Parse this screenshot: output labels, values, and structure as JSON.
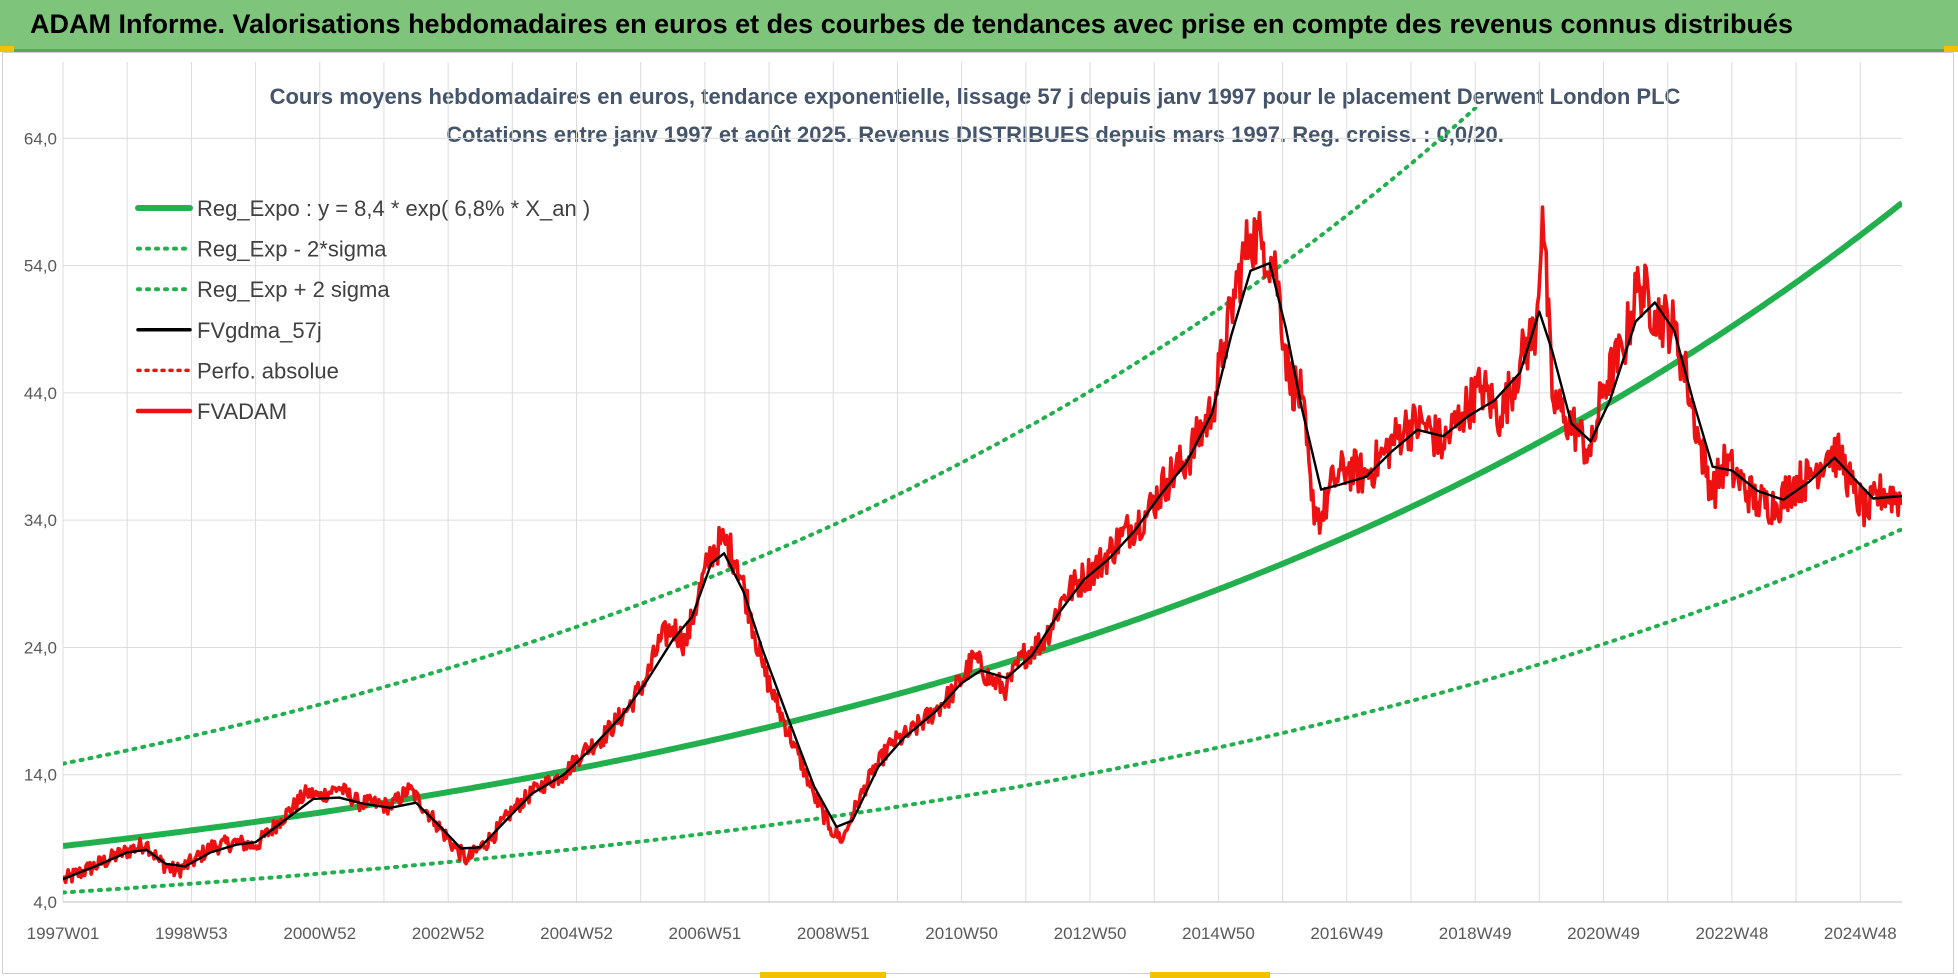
{
  "header": {
    "title": "ADAM Informe. Valorisations hebdomadaires en euros et des courbes de tendances avec prise en compte des revenus connus distribués"
  },
  "colors": {
    "header_bg": "#7ec47a",
    "reg_expo": "#22b04e",
    "sigma_band": "#22b04e",
    "gdma": "#000000",
    "fvadam": "#ee1111",
    "perfo": "#ee1111",
    "grid": "#dcdcdc"
  },
  "chart_data": {
    "type": "line",
    "title_line1": "Cours moyens hebdomadaires en euros, tendance exponentielle, lissage 57 j depuis janv 1997 pour le placement Derwent London PLC",
    "title_line2": "Cotations entre janv 1997 et août 2025.  Revenus DISTRIBUES depuis mars 1997. Reg. croiss. : 0,0/20.",
    "y_ticks": [
      "4,0",
      "14,0",
      "24,0",
      "34,0",
      "44,0",
      "54,0",
      "64,0"
    ],
    "ylim": [
      4,
      70
    ],
    "x_ticks": [
      "1997W01",
      "1998W53",
      "2000W52",
      "2002W52",
      "2004W52",
      "2006W51",
      "2008W51",
      "2010W50",
      "2012W50",
      "2014W50",
      "2016W49",
      "2018W49",
      "2020W49",
      "2022W48",
      "2024W48"
    ],
    "x_tick_years": [
      1997.0,
      1999.0,
      2001.0,
      2003.0,
      2005.0,
      2007.0,
      2009.0,
      2011.0,
      2013.0,
      2015.0,
      2017.0,
      2019.0,
      2021.0,
      2023.0,
      2025.0
    ],
    "xlim_years": [
      1997.0,
      2025.65
    ],
    "legend": [
      {
        "label": "Reg_Expo : y = 8,4 * exp( 6,8% *  X_an )",
        "style": "solid-green"
      },
      {
        "label": "Reg_Exp - 2*sigma",
        "style": "dotted-green"
      },
      {
        "label": "Reg_Exp + 2 sigma",
        "style": "dotted-green"
      },
      {
        "label": "FVgdma_57j",
        "style": "solid-black"
      },
      {
        "label": "Perfo. absolue",
        "style": "dotted-red"
      },
      {
        "label": "FVADAM",
        "style": "solid-red"
      }
    ],
    "regression": {
      "a": 8.4,
      "rate": 0.068,
      "lower_factor": 0.565,
      "upper_factor": 1.77
    },
    "series": [
      {
        "name": "FVADAM",
        "points": [
          [
            1997.0,
            5.7
          ],
          [
            1997.4,
            6.6
          ],
          [
            1997.9,
            7.8
          ],
          [
            1998.3,
            8.6
          ],
          [
            1998.5,
            7.2
          ],
          [
            1998.75,
            6.4
          ],
          [
            1999.0,
            7.1
          ],
          [
            1999.3,
            8.3
          ],
          [
            1999.7,
            8.7
          ],
          [
            2000.0,
            8.4
          ],
          [
            2000.4,
            10.5
          ],
          [
            2000.8,
            12.6
          ],
          [
            2001.0,
            12.3
          ],
          [
            2001.3,
            13.0
          ],
          [
            2001.6,
            11.8
          ],
          [
            2001.9,
            11.7
          ],
          [
            2002.1,
            11.5
          ],
          [
            2002.4,
            12.9
          ],
          [
            2002.8,
            10.3
          ],
          [
            2003.1,
            8.3
          ],
          [
            2003.3,
            7.3
          ],
          [
            2003.7,
            9.2
          ],
          [
            2004.0,
            11.2
          ],
          [
            2004.4,
            13.0
          ],
          [
            2004.8,
            14.0
          ],
          [
            2005.1,
            15.8
          ],
          [
            2005.4,
            16.9
          ],
          [
            2005.8,
            19.2
          ],
          [
            2006.1,
            21.7
          ],
          [
            2006.3,
            24.5
          ],
          [
            2006.5,
            25.6
          ],
          [
            2006.7,
            24.3
          ],
          [
            2006.9,
            28.1
          ],
          [
            2007.1,
            31.5
          ],
          [
            2007.3,
            32.4
          ],
          [
            2007.5,
            30.8
          ],
          [
            2007.7,
            26.8
          ],
          [
            2007.9,
            22.5
          ],
          [
            2008.1,
            19.8
          ],
          [
            2008.4,
            16.2
          ],
          [
            2008.7,
            12.4
          ],
          [
            2008.95,
            9.8
          ],
          [
            2009.15,
            8.9
          ],
          [
            2009.3,
            10.9
          ],
          [
            2009.6,
            14.1
          ],
          [
            2009.9,
            16.4
          ],
          [
            2010.2,
            17.3
          ],
          [
            2010.6,
            19.1
          ],
          [
            2010.9,
            20.7
          ],
          [
            2011.2,
            23.2
          ],
          [
            2011.45,
            21.4
          ],
          [
            2011.7,
            20.8
          ],
          [
            2011.95,
            23.3
          ],
          [
            2012.3,
            24.7
          ],
          [
            2012.6,
            28.1
          ],
          [
            2012.9,
            29.5
          ],
          [
            2013.2,
            30.8
          ],
          [
            2013.5,
            32.8
          ],
          [
            2013.9,
            34.6
          ],
          [
            2014.2,
            37.2
          ],
          [
            2014.5,
            38.7
          ],
          [
            2014.9,
            42.6
          ],
          [
            2015.1,
            47.9
          ],
          [
            2015.3,
            52.8
          ],
          [
            2015.5,
            56.4
          ],
          [
            2015.7,
            55.8
          ],
          [
            2015.9,
            53.6
          ],
          [
            2016.1,
            45.2
          ],
          [
            2016.3,
            43.6
          ],
          [
            2016.45,
            35.6
          ],
          [
            2016.6,
            34.1
          ],
          [
            2016.8,
            37.2
          ],
          [
            2017.0,
            38.1
          ],
          [
            2017.3,
            37.5
          ],
          [
            2017.6,
            39.4
          ],
          [
            2017.9,
            41.3
          ],
          [
            2018.2,
            41.6
          ],
          [
            2018.5,
            39.9
          ],
          [
            2018.8,
            42.4
          ],
          [
            2019.1,
            44.5
          ],
          [
            2019.4,
            42.1
          ],
          [
            2019.7,
            46.5
          ],
          [
            2019.95,
            49.2
          ],
          [
            2020.05,
            58.6
          ],
          [
            2020.2,
            43.6
          ],
          [
            2020.4,
            42.1
          ],
          [
            2020.6,
            41.0
          ],
          [
            2020.8,
            39.1
          ],
          [
            2021.0,
            44.6
          ],
          [
            2021.3,
            47.3
          ],
          [
            2021.55,
            52.7
          ],
          [
            2021.8,
            50.4
          ],
          [
            2022.1,
            49.1
          ],
          [
            2022.3,
            45.0
          ],
          [
            2022.5,
            40.0
          ],
          [
            2022.7,
            36.2
          ],
          [
            2022.9,
            38.6
          ],
          [
            2023.1,
            37.2
          ],
          [
            2023.4,
            35.4
          ],
          [
            2023.7,
            35.2
          ],
          [
            2023.95,
            36.8
          ],
          [
            2024.2,
            37.3
          ],
          [
            2024.5,
            39.4
          ],
          [
            2024.7,
            38.9
          ],
          [
            2024.9,
            36.2
          ],
          [
            2025.1,
            34.6
          ],
          [
            2025.35,
            36.3
          ],
          [
            2025.65,
            35.6
          ]
        ]
      },
      {
        "name": "FVgdma_57j",
        "points": [
          [
            1997.0,
            5.8
          ],
          [
            1997.5,
            6.8
          ],
          [
            1998.0,
            7.9
          ],
          [
            1998.3,
            8.1
          ],
          [
            1998.6,
            7.0
          ],
          [
            1998.9,
            6.8
          ],
          [
            1999.3,
            7.9
          ],
          [
            1999.7,
            8.5
          ],
          [
            2000.0,
            8.7
          ],
          [
            2000.5,
            10.6
          ],
          [
            2000.9,
            12.1
          ],
          [
            2001.3,
            12.2
          ],
          [
            2001.7,
            11.7
          ],
          [
            2002.1,
            11.4
          ],
          [
            2002.5,
            11.8
          ],
          [
            2002.9,
            9.8
          ],
          [
            2003.2,
            8.2
          ],
          [
            2003.5,
            8.3
          ],
          [
            2003.9,
            10.4
          ],
          [
            2004.3,
            12.5
          ],
          [
            2004.8,
            14.0
          ],
          [
            2005.2,
            15.9
          ],
          [
            2005.7,
            18.6
          ],
          [
            2006.1,
            21.4
          ],
          [
            2006.5,
            24.6
          ],
          [
            2006.8,
            26.4
          ],
          [
            2007.1,
            30.6
          ],
          [
            2007.3,
            31.4
          ],
          [
            2007.6,
            28.4
          ],
          [
            2007.9,
            23.8
          ],
          [
            2008.3,
            18.4
          ],
          [
            2008.7,
            13.1
          ],
          [
            2009.05,
            9.9
          ],
          [
            2009.3,
            10.4
          ],
          [
            2009.7,
            14.6
          ],
          [
            2010.1,
            16.9
          ],
          [
            2010.6,
            19.0
          ],
          [
            2011.0,
            21.2
          ],
          [
            2011.3,
            22.2
          ],
          [
            2011.7,
            21.6
          ],
          [
            2012.1,
            23.4
          ],
          [
            2012.5,
            26.6
          ],
          [
            2012.9,
            29.3
          ],
          [
            2013.3,
            31.0
          ],
          [
            2013.7,
            33.2
          ],
          [
            2014.1,
            36.0
          ],
          [
            2014.5,
            38.5
          ],
          [
            2014.9,
            42.4
          ],
          [
            2015.2,
            48.5
          ],
          [
            2015.5,
            53.6
          ],
          [
            2015.8,
            54.2
          ],
          [
            2016.05,
            49.1
          ],
          [
            2016.3,
            42.8
          ],
          [
            2016.6,
            36.4
          ],
          [
            2016.9,
            36.8
          ],
          [
            2017.3,
            37.4
          ],
          [
            2017.7,
            39.4
          ],
          [
            2018.1,
            41.1
          ],
          [
            2018.5,
            40.6
          ],
          [
            2018.9,
            42.2
          ],
          [
            2019.3,
            43.4
          ],
          [
            2019.7,
            45.6
          ],
          [
            2020.0,
            50.4
          ],
          [
            2020.2,
            47.3
          ],
          [
            2020.5,
            41.6
          ],
          [
            2020.8,
            40.2
          ],
          [
            2021.1,
            43.4
          ],
          [
            2021.5,
            49.6
          ],
          [
            2021.8,
            51.1
          ],
          [
            2022.1,
            48.9
          ],
          [
            2022.4,
            43.3
          ],
          [
            2022.7,
            38.2
          ],
          [
            2023.0,
            37.9
          ],
          [
            2023.4,
            36.3
          ],
          [
            2023.8,
            35.6
          ],
          [
            2024.2,
            37.0
          ],
          [
            2024.6,
            38.9
          ],
          [
            2024.9,
            37.3
          ],
          [
            2025.2,
            35.7
          ],
          [
            2025.65,
            35.9
          ]
        ]
      }
    ]
  }
}
